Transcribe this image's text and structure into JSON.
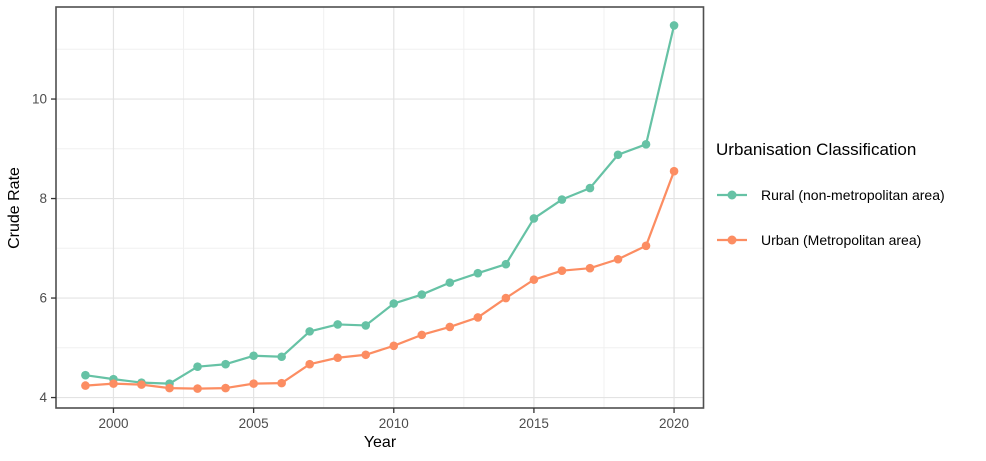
{
  "chart_data": {
    "type": "line",
    "title": "",
    "xlabel": "Year",
    "ylabel": "Crude Rate",
    "x": [
      1999,
      2000,
      2001,
      2002,
      2003,
      2004,
      2005,
      2006,
      2007,
      2008,
      2009,
      2010,
      2011,
      2012,
      2013,
      2014,
      2015,
      2016,
      2017,
      2018,
      2019,
      2020
    ],
    "series": [
      {
        "name": "Rural (non-metropolitan area)",
        "color": "#66C2A5",
        "values": [
          4.45,
          4.37,
          4.3,
          4.28,
          4.62,
          4.67,
          4.84,
          4.82,
          5.33,
          5.47,
          5.45,
          5.89,
          6.07,
          6.31,
          6.5,
          6.68,
          7.6,
          7.98,
          8.21,
          8.88,
          9.09,
          11.48
        ]
      },
      {
        "name": "Urban (Metropolitan area)",
        "color": "#FC8D62",
        "values": [
          4.24,
          4.28,
          4.26,
          4.19,
          4.18,
          4.19,
          4.28,
          4.29,
          4.67,
          4.8,
          4.86,
          5.04,
          5.26,
          5.42,
          5.61,
          6.0,
          6.37,
          6.55,
          6.6,
          6.78,
          7.05,
          8.55
        ]
      }
    ],
    "xlim": [
      1997.95,
      2021.05
    ],
    "ylim": [
      3.79,
      11.85
    ],
    "xticks": [
      2000,
      2005,
      2010,
      2015,
      2020
    ],
    "yticks": [
      4,
      6,
      8,
      10
    ],
    "x_minor_gridlines": [
      2002.5,
      2007.5,
      2012.5,
      2017.5
    ],
    "y_minor_gridlines": [
      5,
      7,
      9,
      11
    ],
    "grid": "on",
    "legend_title": "Urbanisation Classification",
    "legend_position": "right"
  },
  "style": {
    "panel_border": "#4f4f4f",
    "grid_major": "#e3e3e3",
    "grid_minor": "#f0f0f0",
    "tick_mark": "#333333",
    "tick_label": "#4d4d4d",
    "background": "#ffffff"
  }
}
